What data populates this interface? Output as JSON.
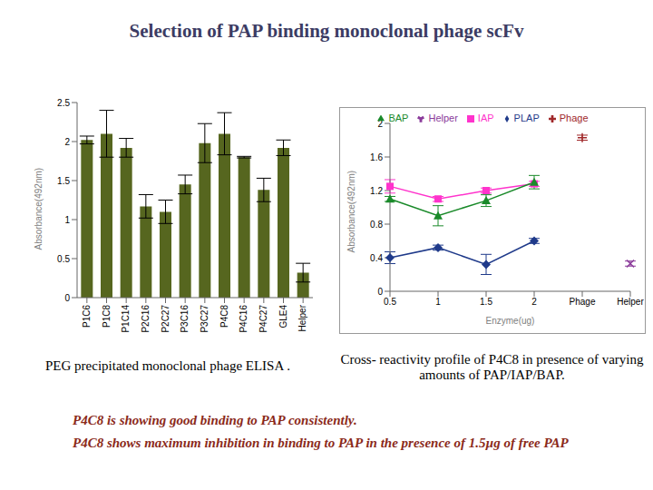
{
  "title": "Selection of PAP binding monoclonal phage scFv",
  "notes": [
    "P4C8 is showing  good binding to PAP consistently.",
    "P4C8 shows maximum inhibition in binding to PAP in the presence of 1.5µg of free PAP"
  ],
  "chart_data": [
    {
      "type": "bar",
      "caption": "PEG precipitated monoclonal  phage  ELISA .",
      "y_label": "Absorbance(492nm)",
      "categories": [
        "P1C6",
        "P1C8",
        "P1C14",
        "P2C16",
        "P2C27",
        "P3C16",
        "P3C27",
        "P4C8",
        "P4C16",
        "P4C27",
        "GLE4",
        "Helper"
      ],
      "values": [
        2.02,
        2.1,
        1.92,
        1.17,
        1.1,
        1.45,
        1.98,
        2.1,
        1.8,
        1.38,
        1.92,
        0.32
      ],
      "errors": [
        0.05,
        0.3,
        0.12,
        0.15,
        0.15,
        0.12,
        0.25,
        0.27,
        0.01,
        0.15,
        0.1,
        0.12
      ],
      "color": "#56661f",
      "ylim": [
        0,
        2.5
      ],
      "yticks": [
        0,
        0.5,
        1,
        1.5,
        2,
        2.5
      ],
      "grid": false
    },
    {
      "type": "line",
      "caption": "Cross- reactivity profile of P4C8 in presence of  varying amounts of PAP/IAP/BAP.",
      "x_label": "Enzyme(ug)",
      "y_label": "Absorbance(492nm)",
      "categories": [
        "0.5",
        "1",
        "1.5",
        "2",
        "Phage",
        "Helper"
      ],
      "series": [
        {
          "name": "PLAP",
          "color": "#1f3a8a",
          "marker": "diamond",
          "values": [
            0.4,
            0.52,
            0.32,
            0.6,
            null,
            null
          ],
          "errors": [
            0.07,
            0.03,
            0.12,
            0.03,
            null,
            null
          ]
        },
        {
          "name": "IAP",
          "color": "#ff33cc",
          "marker": "square",
          "values": [
            1.25,
            1.1,
            1.2,
            1.28,
            null,
            null
          ],
          "errors": [
            0.08,
            0.03,
            0.03,
            0.03,
            null,
            null
          ]
        },
        {
          "name": "BAP",
          "color": "#1a8a2a",
          "marker": "triangle",
          "values": [
            1.1,
            0.9,
            1.08,
            1.3,
            null,
            null
          ],
          "errors": [
            0.03,
            0.12,
            0.07,
            0.08,
            null,
            null
          ]
        },
        {
          "name": "Phage",
          "color": "#a0282a",
          "marker": "plus",
          "values": [
            null,
            null,
            null,
            null,
            1.83,
            null
          ],
          "errors": [
            null,
            null,
            null,
            null,
            0.03,
            null
          ]
        },
        {
          "name": "Helper",
          "color": "#8a3a9a",
          "marker": "x",
          "values": [
            null,
            null,
            null,
            null,
            null,
            0.33
          ],
          "errors": [
            null,
            null,
            null,
            null,
            null,
            0.03
          ]
        }
      ],
      "ylim": [
        0,
        2
      ],
      "yticks": [
        0,
        0.4,
        0.8,
        1.2,
        1.6,
        2
      ],
      "grid": false,
      "legend": "top"
    }
  ]
}
